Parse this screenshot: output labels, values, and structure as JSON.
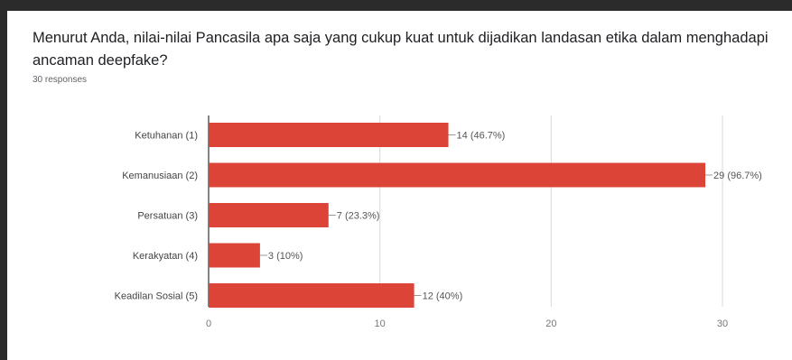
{
  "question": {
    "title": "Menurut Anda,  nilai-nilai Pancasila apa saja yang  cukup kuat untuk dijadikan landasan etika dalam menghadapi ancaman deepfake?",
    "responses": "30 responses"
  },
  "chart_data": {
    "type": "bar",
    "orientation": "horizontal",
    "categories": [
      "Ketuhanan (1)",
      "Kemanusiaan (2)",
      "Persatuan (3)",
      "Kerakyatan (4)",
      "Keadilan Sosial (5)"
    ],
    "values": [
      14,
      29,
      7,
      3,
      12
    ],
    "data_labels": [
      "14 (46.7%)",
      "29 (96.7%)",
      "7 (23.3%)",
      "3 (10%)",
      "12 (40%)"
    ],
    "xlim": [
      0,
      30
    ],
    "x_ticks": [
      0,
      10,
      20,
      30
    ],
    "x_tick_labels": [
      "0",
      "10",
      "20",
      "30"
    ],
    "grid": true,
    "bar_color": "#db4437",
    "legend": "none"
  }
}
